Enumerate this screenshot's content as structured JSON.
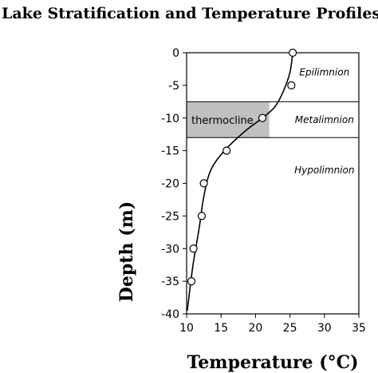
{
  "chart_data": {
    "type": "scatter",
    "title": "Lake Stratification and Temperature Profiles",
    "xlabel": "Temperature (°C)",
    "ylabel": "Depth (m)",
    "xlim": [
      10,
      35
    ],
    "ylim": [
      -40,
      0
    ],
    "xticks": [
      10,
      15,
      20,
      25,
      30,
      35
    ],
    "yticks": [
      0,
      -5,
      -10,
      -15,
      -20,
      -25,
      -30,
      -35,
      -40
    ],
    "grid": false,
    "series": [
      {
        "points": [
          {
            "x": 25.4,
            "y": 0
          },
          {
            "x": 25.2,
            "y": -5
          },
          {
            "x": 21.0,
            "y": -10
          },
          {
            "x": 15.8,
            "y": -15
          },
          {
            "x": 12.5,
            "y": -20
          },
          {
            "x": 12.2,
            "y": -25
          },
          {
            "x": 11.0,
            "y": -30
          },
          {
            "x": 10.7,
            "y": -35
          }
        ],
        "marker": "open-circle"
      }
    ],
    "curve": [
      {
        "x": 25.4,
        "y": 0
      },
      {
        "x": 25.0,
        "y": -3
      },
      {
        "x": 24.0,
        "y": -6
      },
      {
        "x": 22.8,
        "y": -8.3
      },
      {
        "x": 21.0,
        "y": -10
      },
      {
        "x": 18.5,
        "y": -12
      },
      {
        "x": 15.5,
        "y": -15
      },
      {
        "x": 13.5,
        "y": -18
      },
      {
        "x": 12.5,
        "y": -22
      },
      {
        "x": 11.8,
        "y": -27
      },
      {
        "x": 11.0,
        "y": -32
      },
      {
        "x": 10.5,
        "y": -36
      },
      {
        "x": 10.1,
        "y": -39.5
      }
    ],
    "zone_boundaries": [
      -7.5,
      -13
    ],
    "zones": [
      {
        "label": "Epilimnion",
        "x": 30,
        "y": -3
      },
      {
        "label": "Metalimnion",
        "x": 30,
        "y": -10.3
      },
      {
        "label": "Hypolimnion",
        "x": 30,
        "y": -18
      }
    ],
    "thermocline": {
      "label": "thermocline",
      "x_range": [
        10,
        22
      ],
      "y_range": [
        -7.5,
        -13
      ]
    },
    "colors": {
      "thermocline_fill": "#c0c0c0",
      "line": "#000000"
    }
  }
}
